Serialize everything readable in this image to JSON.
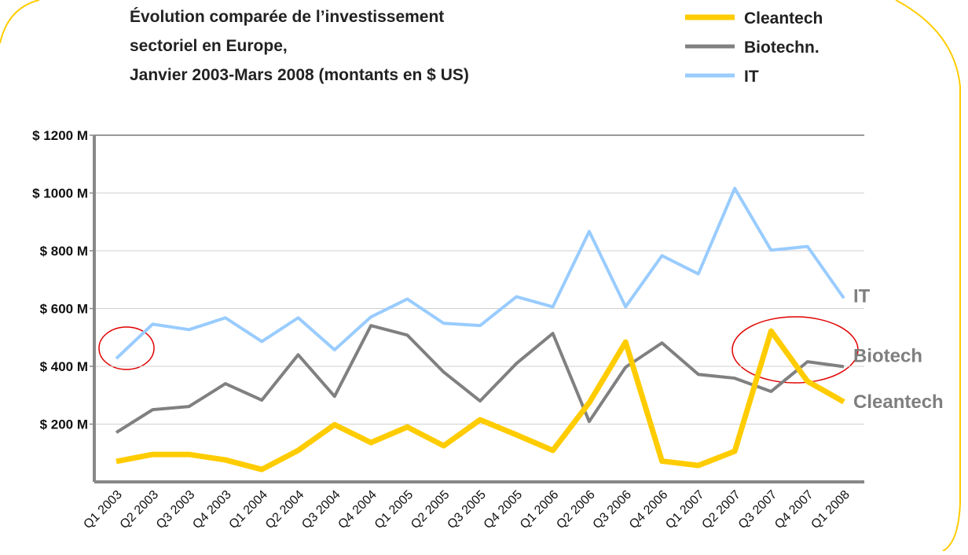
{
  "chart_data": {
    "type": "line",
    "title_lines": [
      "Évolution comparée de l’investissement",
      "sectoriel en Europe,",
      "Janvier 2003-Mars 2008 (montants en $ US)"
    ],
    "categories": [
      "Q1 2003",
      "Q2 2003",
      "Q3 2003",
      "Q4 2003",
      "Q1 2004",
      "Q2 2004",
      "Q3 2004",
      "Q4 2004",
      "Q1 2005",
      "Q2 2005",
      "Q3 2005",
      "Q4 2005",
      "Q1 2006",
      "Q2 2006",
      "Q3 2006",
      "Q4 2006",
      "Q1 2007",
      "Q2 2007",
      "Q3 2007",
      "Q4 2007",
      "Q1 2008"
    ],
    "series": [
      {
        "name": "Cleantech",
        "color": "#ffcc00",
        "end_label": "Cleantech",
        "values": [
          71,
          95,
          95,
          76,
          43,
          109,
          198,
          136,
          190,
          125,
          215,
          163,
          109,
          274,
          484,
          72,
          57,
          106,
          522,
          348,
          277
        ]
      },
      {
        "name": "Biotechn.",
        "color": "#808080",
        "end_label": "Biotech",
        "values": [
          171,
          250,
          261,
          340,
          283,
          440,
          296,
          541,
          508,
          380,
          280,
          410,
          514,
          209,
          397,
          481,
          372,
          359,
          313,
          416,
          399
        ]
      },
      {
        "name": "IT",
        "color": "#99ccff",
        "end_label": "IT",
        "values": [
          427,
          546,
          527,
          568,
          486,
          568,
          457,
          571,
          633,
          549,
          541,
          641,
          606,
          867,
          606,
          783,
          720,
          1016,
          802,
          815,
          636
        ]
      }
    ],
    "ylim": [
      0,
      1200
    ],
    "yticks": [
      {
        "value": 200,
        "label": "$ 200 M"
      },
      {
        "value": 400,
        "label": "$ 400 M"
      },
      {
        "value": 600,
        "label": "$ 600 M"
      },
      {
        "value": 800,
        "label": "$ 800 M"
      },
      {
        "value": 1000,
        "label": "$ 1000 M"
      },
      {
        "value": 1200,
        "label": "$ 1200 M"
      }
    ],
    "grid": true
  }
}
